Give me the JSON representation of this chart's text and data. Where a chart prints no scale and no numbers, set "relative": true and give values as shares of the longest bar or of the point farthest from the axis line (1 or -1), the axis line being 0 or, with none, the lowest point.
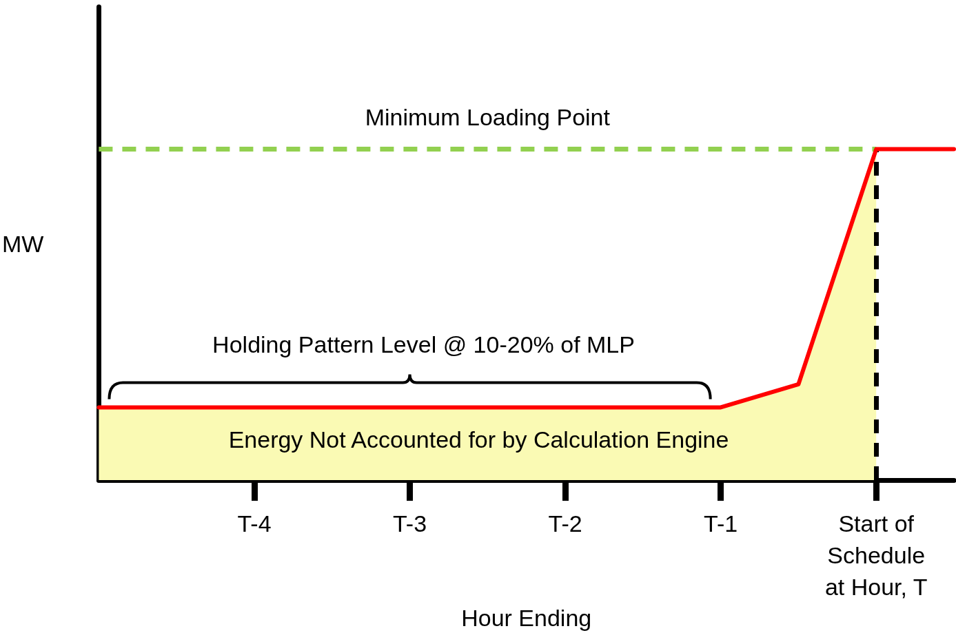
{
  "chart_data": {
    "type": "line",
    "relative": true,
    "xlabel": "Hour Ending",
    "ylabel": "MW",
    "categories": [
      null,
      null,
      "T-4",
      null,
      "T-3",
      null,
      "T-2",
      null,
      "T-1",
      null,
      "Start of\nSchedule\nat Hour, T",
      null
    ],
    "series": [
      {
        "type": "area",
        "color": "#fafab4",
        "values": [
          0.22,
          0.22,
          0.22,
          0.22,
          0.22,
          0.22,
          0.22,
          0.22,
          0.22,
          0.29,
          1,
          null
        ]
      },
      {
        "color": "#ff0000",
        "values": [
          0.22,
          0.22,
          0.22,
          0.22,
          0.22,
          0.22,
          0.22,
          0.22,
          0.22,
          0.29,
          1,
          1
        ]
      }
    ],
    "ref_lines": [
      {
        "axis": "y",
        "value": 1,
        "label": "Minimum Loading Point",
        "color": "#92d050",
        "line_style": "dashed"
      },
      {
        "axis": "x",
        "value": "Start of\nSchedule\nat Hour, T",
        "color": "#000000",
        "line_style": "dashed"
      }
    ],
    "annotations": [
      "Holding Pattern Level @ 10-20% of MLP",
      "Energy Not Accounted for by Calculation Engine"
    ],
    "grid": false,
    "marker": "none",
    "line_style": "solid"
  }
}
